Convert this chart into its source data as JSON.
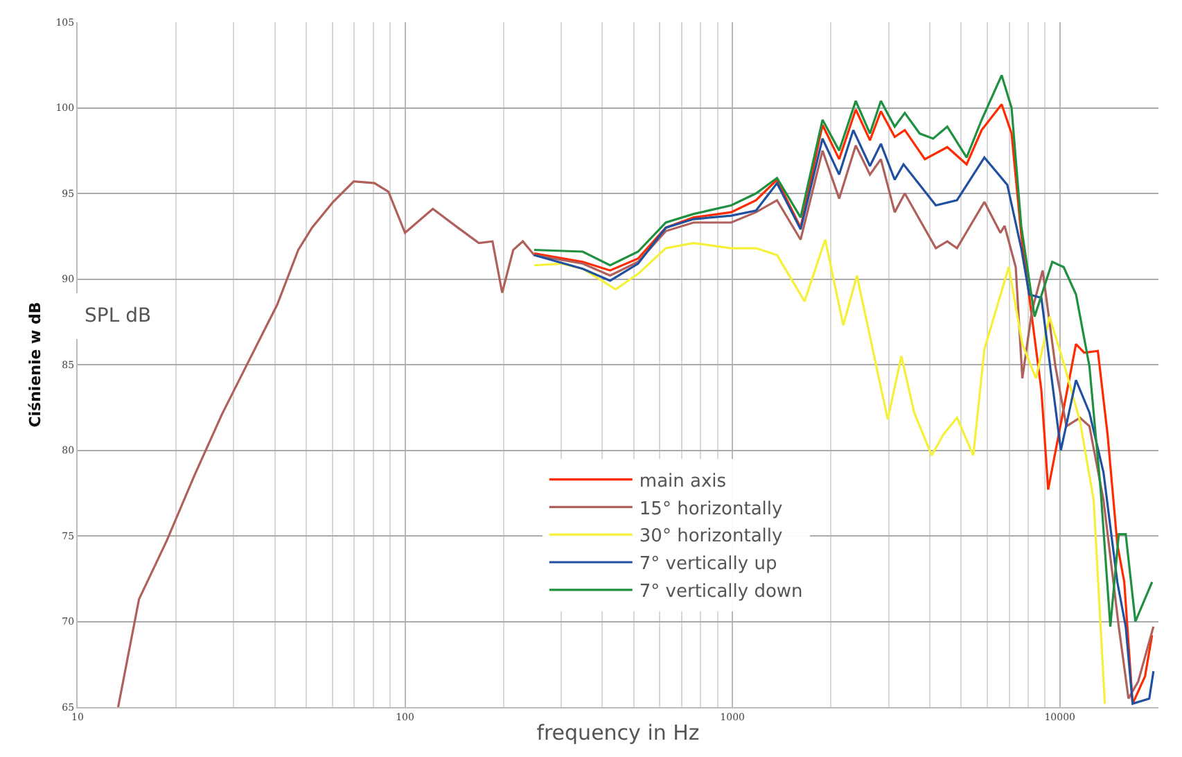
{
  "chart_data": {
    "type": "line",
    "xlabel": "frequency in Hz",
    "ylabel": "Ciśnienie w dB",
    "annotations": [
      "SPL dB"
    ],
    "log": "x",
    "xlim": [
      10,
      20000
    ],
    "xticks": [
      10,
      100,
      1000,
      10000
    ],
    "ylim": [
      65,
      105
    ],
    "yticks": [
      65,
      70,
      75,
      80,
      85,
      90,
      95,
      100,
      105
    ],
    "grid": true,
    "legend": "bottom",
    "line_style": "solid",
    "marker": "none",
    "series": [
      {
        "name": "main axis",
        "color": "#ff2a00",
        "x": [
          248,
          349,
          423,
          515,
          626,
          761,
          991,
          1180,
          1368,
          1615,
          1884,
          2118,
          2380,
          2630,
          2840,
          3130,
          3360,
          3870,
          4530,
          5190,
          5770,
          6640,
          7120,
          7620,
          8780,
          9210,
          11200,
          11860,
          13060,
          13990,
          14980,
          15730,
          16680,
          18200,
          19120
        ],
        "values": [
          91.5,
          91.0,
          90.5,
          91.2,
          93.0,
          93.6,
          93.9,
          94.6,
          95.8,
          93.0,
          99.0,
          97.0,
          99.9,
          98.1,
          99.8,
          98.3,
          98.7,
          97.0,
          97.7,
          96.7,
          98.7,
          100.2,
          98.5,
          92.6,
          83.5,
          77.7,
          86.2,
          85.7,
          85.8,
          80.9,
          74.5,
          72.3,
          65.2,
          66.8,
          69.2
        ]
      },
      {
        "name": "15° horizontally",
        "color": "#b0605a",
        "x": [
          13.3,
          15.4,
          18.7,
          22.7,
          27.6,
          33.5,
          40.7,
          47.2,
          52,
          60.3,
          69.7,
          80.6,
          89,
          100,
          121.6,
          145,
          168,
          185,
          198,
          214,
          229,
          248,
          349,
          423,
          515,
          626,
          761,
          991,
          1180,
          1368,
          1615,
          1884,
          2118,
          2380,
          2630,
          2840,
          3130,
          3360,
          4180,
          4530,
          4850,
          5880,
          6580,
          6780,
          7330,
          7680,
          8210,
          8860,
          9690,
          10470,
          11520,
          12310,
          13590,
          15130,
          16200,
          17350,
          19310
        ],
        "values": [
          65,
          71.3,
          74.7,
          78.5,
          82.1,
          85.3,
          88.5,
          91.7,
          93.0,
          94.5,
          95.7,
          95.6,
          95.1,
          92.7,
          94.1,
          93.0,
          92.1,
          92.2,
          89.2,
          91.7,
          92.2,
          91.4,
          90.9,
          90.2,
          91.0,
          92.8,
          93.3,
          93.3,
          93.9,
          94.6,
          92.3,
          97.5,
          94.7,
          97.8,
          96.1,
          97.0,
          93.9,
          95.0,
          91.8,
          92.2,
          91.8,
          94.5,
          92.7,
          93.1,
          90.7,
          84.2,
          88.1,
          90.5,
          84.9,
          81.4,
          81.9,
          81.4,
          77.1,
          69.7,
          65.5,
          66.5,
          69.7
        ]
      },
      {
        "name": "30° horizontally",
        "color": "#f5f03a",
        "x": [
          248,
          300,
          349,
          440,
          515,
          626,
          761,
          991,
          1180,
          1368,
          1660,
          1920,
          2180,
          2400,
          2980,
          3280,
          3590,
          4060,
          4400,
          4850,
          5440,
          5880,
          6980,
          7680,
          8450,
          9300,
          10270,
          11520,
          12680,
          13720
        ],
        "values": [
          90.8,
          90.9,
          90.6,
          89.4,
          90.3,
          91.8,
          92.1,
          91.8,
          91.8,
          91.4,
          88.7,
          92.3,
          87.3,
          90.2,
          81.8,
          85.5,
          82.2,
          79.7,
          80.9,
          81.9,
          79.7,
          85.9,
          90.7,
          86.2,
          84.2,
          87.8,
          85.1,
          81.7,
          77.1,
          65.2
        ]
      },
      {
        "name": "7° vertically up",
        "color": "#2050a0",
        "x": [
          248,
          349,
          423,
          515,
          626,
          761,
          991,
          1180,
          1368,
          1615,
          1884,
          2118,
          2339,
          2630,
          2840,
          3130,
          3330,
          4180,
          4850,
          5880,
          6910,
          7620,
          8060,
          8780,
          10070,
          11200,
          12310,
          13590,
          14980,
          15890,
          16680,
          18750,
          19310
        ],
        "values": [
          91.4,
          90.6,
          89.9,
          90.9,
          93.0,
          93.5,
          93.7,
          94.0,
          95.6,
          92.9,
          98.2,
          96.1,
          98.7,
          96.6,
          97.9,
          95.8,
          96.7,
          94.3,
          94.6,
          97.1,
          95.5,
          91.8,
          89.1,
          88.9,
          80.0,
          84.1,
          82.2,
          78.7,
          72.3,
          69.7,
          65.2,
          65.5,
          67.1
        ]
      },
      {
        "name": "7° vertically down",
        "color": "#1e9040",
        "x": [
          248,
          349,
          423,
          515,
          626,
          761,
          991,
          1180,
          1368,
          1615,
          1884,
          2118,
          2380,
          2630,
          2840,
          3130,
          3360,
          3730,
          4100,
          4530,
          5190,
          5770,
          6640,
          7120,
          7620,
          8370,
          9480,
          10270,
          11200,
          12310,
          13320,
          14260,
          15130,
          15890,
          17010,
          19120
        ],
        "values": [
          91.7,
          91.6,
          90.8,
          91.6,
          93.3,
          93.8,
          94.3,
          95.0,
          95.9,
          93.6,
          99.3,
          97.5,
          100.4,
          98.5,
          100.4,
          98.9,
          99.7,
          98.5,
          98.2,
          98.9,
          97.1,
          99.3,
          101.9,
          100.0,
          93.1,
          87.8,
          91.0,
          90.7,
          89.1,
          84.9,
          77.7,
          69.7,
          75.1,
          75.1,
          70.0,
          72.3
        ]
      }
    ]
  }
}
